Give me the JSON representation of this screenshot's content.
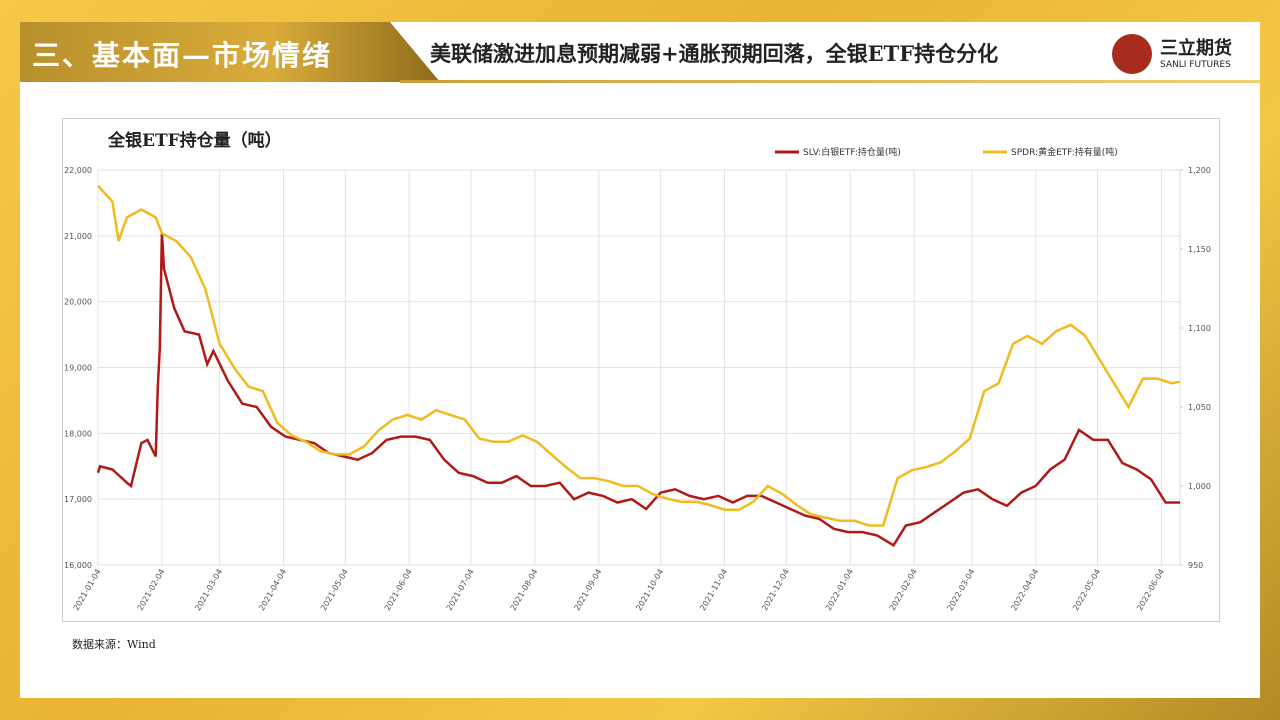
{
  "section_title": "三、基本面—市场情绪",
  "headline": "美联储激进加息预期减弱+通胀预期回落，全银ETF持仓分化",
  "logo": {
    "name": "三立期货",
    "subname": "SANLI FUTURES"
  },
  "source": "数据来源：Wind",
  "chart_data": {
    "type": "line",
    "title": "全银ETF持仓量（吨）",
    "grid": true,
    "legend": "top-right",
    "xlim": [
      "2021-01-04",
      "2022-06-13"
    ],
    "xticks": [
      "2021-01-04",
      "2021-02-04",
      "2021-03-04",
      "2021-04-04",
      "2021-05-04",
      "2021-06-04",
      "2021-07-04",
      "2021-08-04",
      "2021-09-04",
      "2021-10-04",
      "2021-11-04",
      "2021-12-04",
      "2022-01-04",
      "2022-02-04",
      "2022-03-04",
      "2022-04-04",
      "2022-05-04",
      "2022-06-04"
    ],
    "ylim": [
      16000,
      22000
    ],
    "yticks": [
      {
        "value": 16000,
        "label": "16,000"
      },
      {
        "value": 17000,
        "label": "17,000"
      },
      {
        "value": 18000,
        "label": "18,000"
      },
      {
        "value": 19000,
        "label": "19,000"
      },
      {
        "value": 20000,
        "label": "20,000"
      },
      {
        "value": 21000,
        "label": "21,000"
      },
      {
        "value": 22000,
        "label": "22,000"
      }
    ],
    "y2lim": [
      950,
      1200
    ],
    "y2ticks": [
      950,
      {
        "value": 1000,
        "label": "1,000"
      },
      {
        "value": 1050,
        "label": "1,050"
      },
      {
        "value": 1100,
        "label": "1,100"
      },
      {
        "value": 1150,
        "label": "1,150"
      },
      {
        "value": 1200,
        "label": "1,200"
      }
    ],
    "series": [
      {
        "name": "SLV:白银ETF:持仓量(吨)",
        "color": "#b01a16",
        "x": [
          "2021-01-04",
          "2021-01-05",
          "2021-01-11",
          "2021-01-18",
          "2021-01-20",
          "2021-01-25",
          "2021-01-28",
          "2021-02-01",
          "2021-02-02",
          "2021-02-03",
          "2021-02-04",
          "2021-02-05",
          "2021-02-10",
          "2021-02-15",
          "2021-02-22",
          "2021-02-26",
          "2021-03-01",
          "2021-03-08",
          "2021-03-15",
          "2021-03-22",
          "2021-03-29",
          "2021-04-05",
          "2021-04-12",
          "2021-04-19",
          "2021-04-26",
          "2021-05-03",
          "2021-05-10",
          "2021-05-17",
          "2021-05-24",
          "2021-05-31",
          "2021-06-07",
          "2021-06-14",
          "2021-06-21",
          "2021-06-28",
          "2021-07-05",
          "2021-07-12",
          "2021-07-19",
          "2021-07-26",
          "2021-08-02",
          "2021-08-09",
          "2021-08-16",
          "2021-08-23",
          "2021-08-30",
          "2021-09-06",
          "2021-09-13",
          "2021-09-20",
          "2021-09-27",
          "2021-10-04",
          "2021-10-11",
          "2021-10-18",
          "2021-10-25",
          "2021-11-01",
          "2021-11-08",
          "2021-11-15",
          "2021-11-22",
          "2021-11-29",
          "2021-12-06",
          "2021-12-13",
          "2021-12-20",
          "2021-12-27",
          "2022-01-03",
          "2022-01-10",
          "2022-01-17",
          "2022-01-25",
          "2022-01-31",
          "2022-02-07",
          "2022-02-14",
          "2022-02-21",
          "2022-02-28",
          "2022-03-07",
          "2022-03-14",
          "2022-03-21",
          "2022-03-28",
          "2022-04-04",
          "2022-04-11",
          "2022-04-18",
          "2022-04-25",
          "2022-05-02",
          "2022-05-09",
          "2022-05-16",
          "2022-05-23",
          "2022-05-30",
          "2022-06-06",
          "2022-06-13"
        ],
        "values": [
          17400,
          17500,
          17450,
          17250,
          17200,
          17850,
          17900,
          17650,
          18700,
          19300,
          21050,
          20500,
          19900,
          19550,
          19500,
          19050,
          19250,
          18800,
          18450,
          18400,
          18100,
          17950,
          17900,
          17850,
          17700,
          17650,
          17600,
          17700,
          17900,
          17950,
          17950,
          17900,
          17600,
          17400,
          17350,
          17250,
          17250,
          17350,
          17200,
          17200,
          17250,
          17000,
          17100,
          17050,
          16950,
          17000,
          16850,
          17100,
          17150,
          17050,
          17000,
          17050,
          16950,
          17050,
          17050,
          16950,
          16850,
          16750,
          16700,
          16550,
          16500,
          16500,
          16450,
          16300,
          16600,
          16650,
          16800,
          16950,
          17100,
          17150,
          17000,
          16900,
          17100,
          17200,
          17450,
          17600,
          18050,
          17900,
          17900,
          17550,
          17450,
          17300,
          16950,
          16950
        ]
      },
      {
        "name": "SPDR:黄金ETF:持有量(吨)",
        "color": "#f0bb1e",
        "axis": "y2",
        "x": [
          "2021-01-04",
          "2021-01-11",
          "2021-01-14",
          "2021-01-18",
          "2021-01-25",
          "2021-02-01",
          "2021-02-04",
          "2021-02-11",
          "2021-02-18",
          "2021-02-25",
          "2021-03-04",
          "2021-03-11",
          "2021-03-18",
          "2021-03-25",
          "2021-04-01",
          "2021-04-08",
          "2021-04-15",
          "2021-04-22",
          "2021-04-29",
          "2021-05-06",
          "2021-05-13",
          "2021-05-20",
          "2021-05-27",
          "2021-06-03",
          "2021-06-10",
          "2021-06-17",
          "2021-06-24",
          "2021-07-01",
          "2021-07-08",
          "2021-07-15",
          "2021-07-22",
          "2021-07-29",
          "2021-08-05",
          "2021-08-12",
          "2021-08-19",
          "2021-08-26",
          "2021-09-02",
          "2021-09-09",
          "2021-09-16",
          "2021-09-23",
          "2021-09-30",
          "2021-10-07",
          "2021-10-14",
          "2021-10-21",
          "2021-10-28",
          "2021-11-04",
          "2021-11-11",
          "2021-11-18",
          "2021-11-25",
          "2021-12-02",
          "2021-12-09",
          "2021-12-16",
          "2021-12-23",
          "2021-12-30",
          "2022-01-06",
          "2022-01-13",
          "2022-01-20",
          "2022-01-27",
          "2022-02-03",
          "2022-02-10",
          "2022-02-17",
          "2022-02-24",
          "2022-03-03",
          "2022-03-10",
          "2022-03-17",
          "2022-03-24",
          "2022-03-31",
          "2022-04-07",
          "2022-04-14",
          "2022-04-21",
          "2022-04-28",
          "2022-05-05",
          "2022-05-12",
          "2022-05-19",
          "2022-05-26",
          "2022-06-02",
          "2022-06-09",
          "2022-06-13"
        ],
        "values": [
          1190,
          1180,
          1155,
          1170,
          1175,
          1170,
          1160,
          1155,
          1145,
          1125,
          1090,
          1075,
          1063,
          1060,
          1040,
          1032,
          1028,
          1022,
          1020,
          1020,
          1025,
          1035,
          1042,
          1045,
          1042,
          1048,
          1045,
          1042,
          1030,
          1028,
          1028,
          1032,
          1028,
          1020,
          1012,
          1005,
          1005,
          1003,
          1000,
          1000,
          995,
          992,
          990,
          990,
          988,
          985,
          985,
          990,
          1000,
          995,
          988,
          982,
          980,
          978,
          978,
          975,
          975,
          1005,
          1010,
          1012,
          1015,
          1022,
          1030,
          1060,
          1065,
          1090,
          1095,
          1090,
          1098,
          1102,
          1095,
          1080,
          1065,
          1050,
          1068,
          1068,
          1065,
          1066
        ]
      }
    ]
  }
}
